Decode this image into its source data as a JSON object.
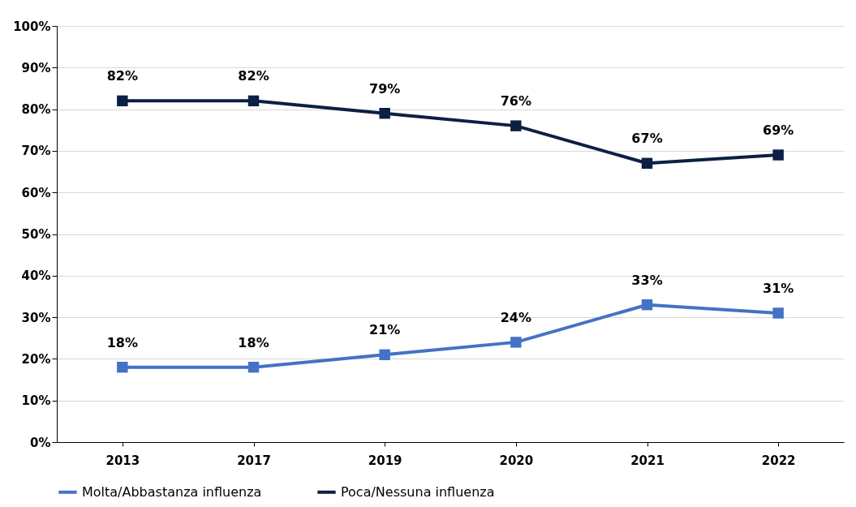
{
  "chart_data": {
    "type": "line",
    "categories": [
      "2013",
      "2017",
      "2019",
      "2020",
      "2021",
      "2022"
    ],
    "series": [
      {
        "name": "Molta/Abbastanza influenza",
        "color": "#4472c4",
        "values": [
          18,
          18,
          21,
          24,
          33,
          31
        ],
        "value_labels": [
          "18%",
          "18%",
          "21%",
          "24%",
          "33%",
          "31%"
        ]
      },
      {
        "name": "Poca/Nessuna influenza",
        "color": "#0c1f45",
        "values": [
          82,
          82,
          79,
          76,
          67,
          69
        ],
        "value_labels": [
          "82%",
          "82%",
          "79%",
          "76%",
          "67%",
          "69%"
        ]
      }
    ],
    "ylim": [
      0,
      100
    ],
    "yticks": [
      {
        "value": 0,
        "label": "0%"
      },
      {
        "value": 10,
        "label": "10%"
      },
      {
        "value": 20,
        "label": "20%"
      },
      {
        "value": 30,
        "label": "30%"
      },
      {
        "value": 40,
        "label": "40%"
      },
      {
        "value": 50,
        "label": "50%"
      },
      {
        "value": 60,
        "label": "60%"
      },
      {
        "value": 70,
        "label": "70%"
      },
      {
        "value": 80,
        "label": "80%"
      },
      {
        "value": 90,
        "label": "90%"
      },
      {
        "value": 100,
        "label": "100%"
      }
    ],
    "grid": "y",
    "legend": "bottom",
    "marker": "square",
    "line_style": "solid"
  }
}
